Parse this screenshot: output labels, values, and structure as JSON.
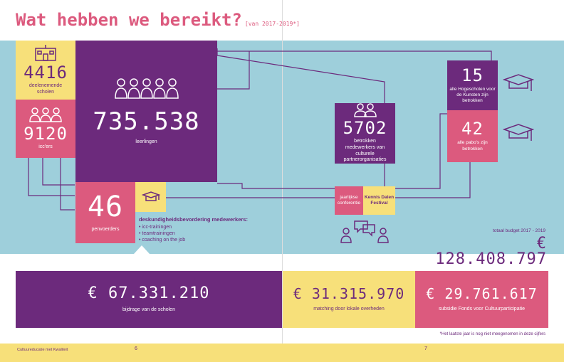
{
  "header": {
    "title": "Wat hebben we bereikt?",
    "subtitle": "[van 2017-2019*]"
  },
  "colors": {
    "purple": "#6c2a7c",
    "pink": "#dc5a7e",
    "yellow": "#f7e07a",
    "teal": "#9ecfdb"
  },
  "stats": {
    "schools": {
      "value": "4416",
      "label": "deelenemende scholen",
      "icon": "school-icon"
    },
    "iccers": {
      "value": "9120",
      "label": "icc'ers",
      "icon": "people-icon"
    },
    "students": {
      "value": "735.538",
      "label": "leerlingen",
      "icon": "group-icon"
    },
    "pabo_leaders": {
      "value": "46",
      "label": "penvoerders"
    },
    "training": {
      "heading": "deskundigheidsbevordering medewerkers:",
      "items": [
        "icc-trainingen",
        "teamtrainingen",
        "coaching on the job"
      ],
      "icon": "graduation-cap-icon"
    },
    "partners": {
      "value": "5702",
      "label": "betrokken medewerkers van culturele partnerorganisaties",
      "icon": "two-people-icon"
    },
    "conference": {
      "label": "jaarlijkse conferentie"
    },
    "festival": {
      "label": "Kennis Dalen Festival"
    },
    "hogescholen": {
      "value": "15",
      "label": "alle Hogescholen voor de Kunsten zijn betrokken",
      "icon": "graduation-cap-icon"
    },
    "pabos": {
      "value": "42",
      "label": "alle pabo's zijn betrokken",
      "icon": "graduation-cap-icon"
    }
  },
  "budget": {
    "total_label": "totaal budget 2017 - 2019",
    "total_value": "€ 128.408.797",
    "schools_value": "€ 67.331.210",
    "schools_label": "bijdrage van de scholen",
    "local_value": "€ 31.315.970",
    "local_label": "matching door lokale overheden",
    "fonds_value": "€ 29.761.617",
    "fonds_label": "subsidie Fonds voor Cultuurparticipatie"
  },
  "footnote": "*Het laatste jaar is nog niet meegenomen in deze cijfers",
  "footer": {
    "brand": "Cultuureducatie met Kwaliteit",
    "page_left": "6",
    "page_right": "7"
  }
}
